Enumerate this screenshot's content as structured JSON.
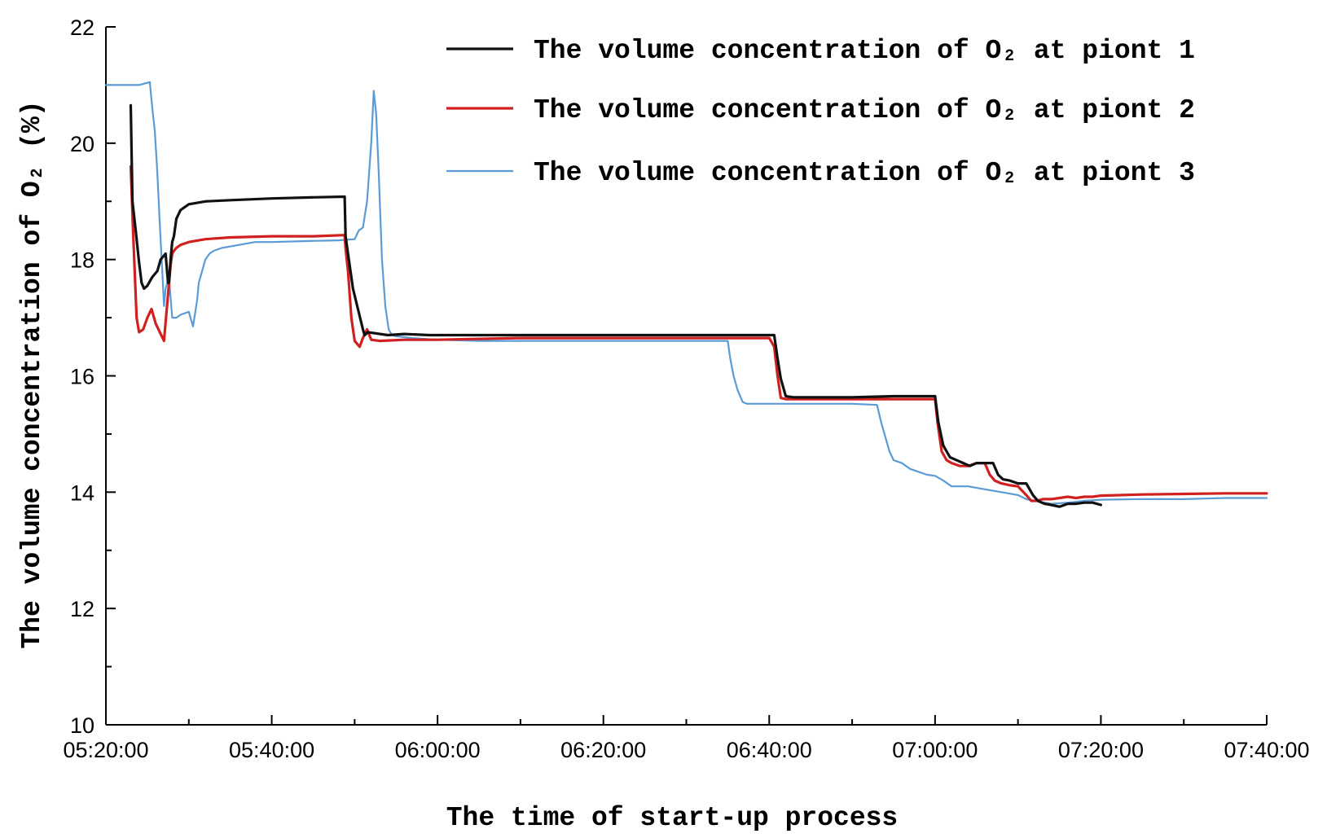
{
  "chart_data": {
    "type": "line",
    "title": "",
    "xlabel": "The time of start-up process",
    "ylabel": "The volume concentration of O₂ (%)",
    "x_unit": "minutes after 05:20:00",
    "xlim": [
      0,
      140
    ],
    "ylim": [
      10,
      22
    ],
    "x_ticks": [
      {
        "value": 0,
        "label": "05:20:00"
      },
      {
        "value": 20,
        "label": "05:40:00"
      },
      {
        "value": 40,
        "label": "06:00:00"
      },
      {
        "value": 60,
        "label": "06:20:00"
      },
      {
        "value": 80,
        "label": "06:40:00"
      },
      {
        "value": 100,
        "label": "07:00:00"
      },
      {
        "value": 120,
        "label": "07:20:00"
      },
      {
        "value": 140,
        "label": "07:40:00"
      }
    ],
    "y_ticks": [
      {
        "value": 10,
        "label": "10"
      },
      {
        "value": 12,
        "label": "12"
      },
      {
        "value": 14,
        "label": "14"
      },
      {
        "value": 16,
        "label": "16"
      },
      {
        "value": 18,
        "label": "18"
      },
      {
        "value": 20,
        "label": "20"
      },
      {
        "value": 22,
        "label": "22"
      }
    ],
    "legend_position": "top-right",
    "series": [
      {
        "name": "The volume concentration of O₂ at piont 1",
        "color": "#111111",
        "x": [
          3.0,
          3.2,
          3.6,
          4.0,
          4.3,
          4.6,
          5.0,
          5.6,
          6.2,
          6.6,
          7.2,
          7.5,
          7.6,
          7.8,
          8.0,
          8.2,
          8.5,
          9.0,
          10.0,
          12.0,
          15.0,
          20.0,
          25.0,
          28.8,
          28.9,
          29.2,
          29.8,
          31.0,
          31.2,
          31.6,
          34.0,
          36.0,
          39.0,
          45.0,
          55.0,
          65.0,
          75.0,
          80.0,
          80.6,
          81.0,
          81.4,
          82.0,
          83.0,
          90.0,
          95.0,
          100.0,
          100.4,
          101.0,
          101.8,
          102.6,
          103.4,
          104.2,
          105.0,
          106.0,
          107.0,
          107.6,
          108.2,
          109.0,
          110.0,
          111.0,
          111.8,
          112.4,
          113.2,
          114.0,
          115.0,
          116.0,
          117.0,
          118.0,
          119.0,
          119.5,
          120.0
        ],
        "y": [
          20.65,
          19.0,
          18.5,
          17.95,
          17.6,
          17.5,
          17.55,
          17.7,
          17.8,
          18.0,
          18.1,
          17.6,
          17.6,
          18.0,
          18.3,
          18.4,
          18.7,
          18.85,
          18.95,
          19.0,
          19.02,
          19.05,
          19.07,
          19.08,
          18.4,
          18.1,
          17.5,
          16.8,
          16.7,
          16.75,
          16.7,
          16.72,
          16.7,
          16.7,
          16.7,
          16.7,
          16.7,
          16.7,
          16.7,
          16.3,
          15.95,
          15.65,
          15.63,
          15.63,
          15.65,
          15.65,
          15.2,
          14.8,
          14.6,
          14.55,
          14.5,
          14.45,
          14.5,
          14.5,
          14.5,
          14.3,
          14.22,
          14.2,
          14.15,
          14.15,
          13.95,
          13.85,
          13.8,
          13.78,
          13.75,
          13.8,
          13.8,
          13.82,
          13.82,
          13.8,
          13.78
        ]
      },
      {
        "name": "The volume concentration of O₂ at piont 2",
        "color": "#d02020",
        "x": [
          3.0,
          3.3,
          3.7,
          4.0,
          4.5,
          5.0,
          5.5,
          6.0,
          6.5,
          7.0,
          7.5,
          7.8,
          8.0,
          8.2,
          8.5,
          9.0,
          10.0,
          12.0,
          15.0,
          20.0,
          25.0,
          28.8,
          28.9,
          29.2,
          29.6,
          30.0,
          30.3,
          30.6,
          31.0,
          31.5,
          32.0,
          33.0,
          36.0,
          40.0,
          50.0,
          60.0,
          70.0,
          78.0,
          80.0,
          80.6,
          81.0,
          81.4,
          82.0,
          85.0,
          90.0,
          95.0,
          100.0,
          100.3,
          100.8,
          101.4,
          102.0,
          103.0,
          104.0,
          105.0,
          106.0,
          106.6,
          107.2,
          108.0,
          109.0,
          110.0,
          111.0,
          111.6,
          112.2,
          113.0,
          114.0,
          115.0,
          116.0,
          117.0,
          118.0,
          119.0,
          120.0,
          125.0,
          130.0,
          135.0,
          140.0
        ],
        "y": [
          19.6,
          18.4,
          17.0,
          16.75,
          16.8,
          17.0,
          17.15,
          16.9,
          16.75,
          16.6,
          17.4,
          17.9,
          18.1,
          18.15,
          18.2,
          18.25,
          18.3,
          18.35,
          18.38,
          18.4,
          18.4,
          18.42,
          18.2,
          17.8,
          17.0,
          16.6,
          16.55,
          16.5,
          16.65,
          16.8,
          16.62,
          16.6,
          16.62,
          16.62,
          16.65,
          16.65,
          16.65,
          16.65,
          16.65,
          16.5,
          16.0,
          15.62,
          15.6,
          15.6,
          15.6,
          15.6,
          15.6,
          15.2,
          14.7,
          14.55,
          14.5,
          14.45,
          14.45,
          14.5,
          14.5,
          14.3,
          14.2,
          14.15,
          14.12,
          14.1,
          13.95,
          13.85,
          13.85,
          13.88,
          13.88,
          13.9,
          13.92,
          13.9,
          13.92,
          13.92,
          13.94,
          13.96,
          13.97,
          13.98,
          13.98
        ]
      },
      {
        "name": "The volume concentration of O₂ at piont 3",
        "color": "#5b9bd5",
        "x": [
          0,
          2.0,
          4.0,
          5.3,
          5.6,
          5.9,
          6.2,
          6.5,
          6.8,
          7.0,
          7.2,
          7.6,
          8.0,
          8.5,
          9.0,
          10.0,
          10.5,
          11.0,
          11.2,
          11.6,
          12.0,
          12.5,
          13.0,
          14.0,
          16.0,
          18.0,
          20.0,
          25.0,
          28.0,
          30.0,
          30.5,
          31.0,
          31.5,
          32.0,
          32.3,
          32.6,
          32.9,
          33.3,
          33.7,
          34.1,
          34.5,
          35.0,
          37.0,
          40.0,
          45.0,
          50.0,
          60.0,
          70.0,
          75.0,
          75.3,
          75.7,
          76.2,
          76.8,
          77.3,
          78.0,
          80.0,
          85.0,
          90.0,
          93.0,
          93.5,
          94.0,
          94.5,
          95.0,
          96.0,
          97.0,
          98.0,
          99.0,
          100.0,
          101.0,
          102.0,
          104.0,
          106.0,
          108.0,
          110.0,
          111.0,
          112.0,
          114.0,
          116.0,
          118.0,
          120.0,
          125.0,
          130.0,
          135.0,
          140.0
        ],
        "y": [
          21.0,
          21.0,
          21.0,
          21.05,
          20.6,
          20.2,
          19.5,
          18.6,
          17.8,
          17.2,
          17.5,
          17.7,
          17.0,
          17.0,
          17.05,
          17.1,
          16.85,
          17.3,
          17.6,
          17.8,
          18.0,
          18.1,
          18.15,
          18.2,
          18.25,
          18.3,
          18.3,
          18.32,
          18.33,
          18.35,
          18.5,
          18.55,
          19.0,
          20.0,
          20.9,
          20.5,
          19.5,
          18.0,
          17.2,
          16.8,
          16.7,
          16.68,
          16.65,
          16.62,
          16.6,
          16.6,
          16.6,
          16.6,
          16.6,
          16.3,
          16.0,
          15.75,
          15.55,
          15.52,
          15.52,
          15.52,
          15.52,
          15.52,
          15.5,
          15.2,
          14.95,
          14.7,
          14.55,
          14.5,
          14.4,
          14.35,
          14.3,
          14.28,
          14.2,
          14.1,
          14.1,
          14.05,
          14.0,
          13.95,
          13.88,
          13.85,
          13.8,
          13.82,
          13.85,
          13.87,
          13.88,
          13.88,
          13.9,
          13.9
        ]
      }
    ]
  }
}
